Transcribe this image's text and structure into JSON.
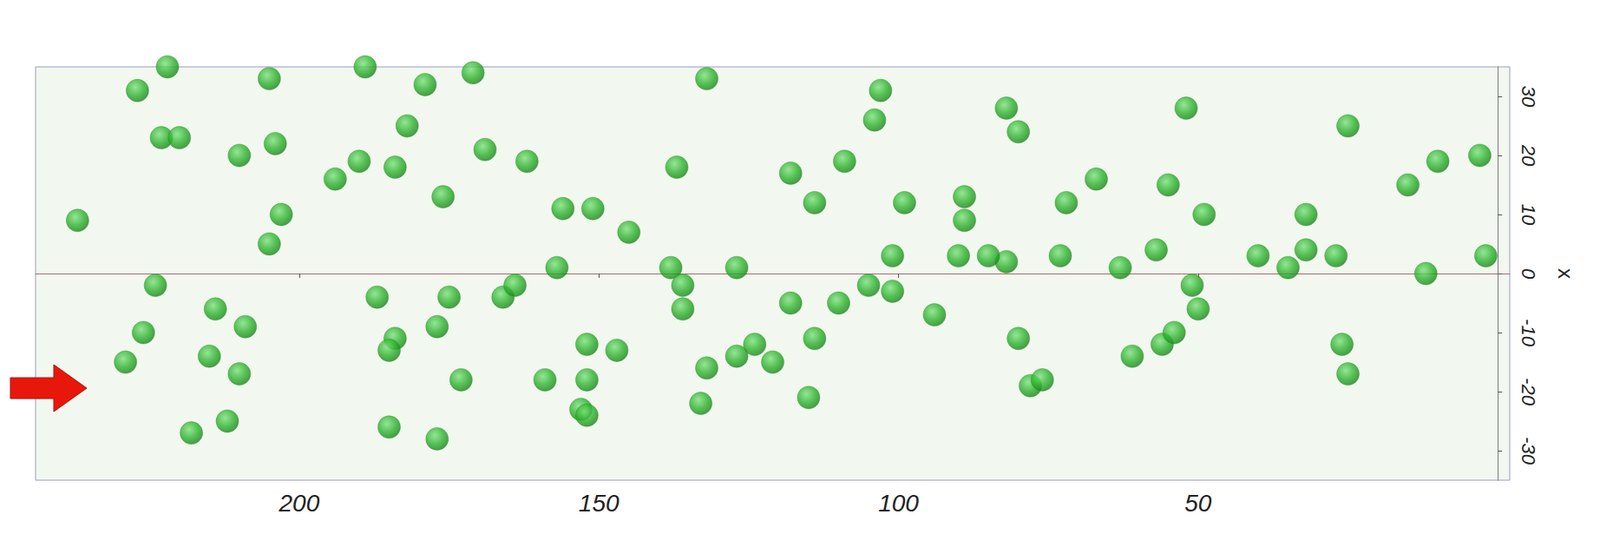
{
  "chart_data": {
    "type": "scatter",
    "ylabel": "x",
    "xlim": [
      244,
      -2
    ],
    "xticks": [
      50,
      100,
      150,
      200
    ],
    "ylim": [
      -35,
      35
    ],
    "yticks": [
      -30,
      -20,
      -10,
      0,
      10,
      20,
      30
    ],
    "grid": false,
    "marker": "circle",
    "color": "#2db32d",
    "x": [
      227,
      222,
      205,
      189,
      179,
      171,
      223,
      220,
      210,
      204,
      194,
      190,
      184,
      182,
      176,
      169,
      162,
      156,
      151,
      145,
      137,
      132,
      138,
      136,
      127,
      118,
      114,
      109,
      103,
      104,
      99,
      89,
      82,
      80,
      72,
      67,
      55,
      49,
      52,
      32,
      25,
      15,
      10,
      3,
      2,
      12,
      27,
      32,
      40,
      51,
      57,
      63,
      73,
      82,
      90,
      89,
      101,
      105,
      110,
      118,
      124,
      132,
      127,
      121,
      114,
      94,
      80,
      78,
      61,
      56,
      50,
      54,
      26,
      25,
      152,
      147,
      136,
      159,
      152,
      153,
      152,
      173,
      184,
      185,
      177,
      175,
      166,
      164,
      157,
      187,
      205,
      203,
      209,
      214,
      215,
      224,
      226,
      237,
      229,
      210,
      218,
      212,
      185,
      177,
      133,
      115,
      101,
      85,
      76,
      35
    ],
    "values": [
      31,
      35,
      33,
      35,
      32,
      34,
      23,
      23,
      20,
      22,
      16,
      19,
      18,
      25,
      13,
      21,
      19,
      11,
      11,
      7,
      18,
      33,
      1,
      -2,
      1,
      17,
      12,
      19,
      31,
      26,
      12,
      13,
      28,
      24,
      12,
      16,
      15,
      10,
      28,
      10,
      25,
      15,
      19,
      20,
      3,
      0,
      3,
      4,
      3,
      -2,
      4,
      1,
      3,
      2,
      3,
      9,
      -3,
      -2,
      -5,
      -5,
      -12,
      -16,
      -14,
      -15,
      -11,
      -7,
      -11,
      -19,
      -14,
      -12,
      -6,
      -10,
      -12,
      -17,
      -12,
      -13,
      -6,
      -18,
      -18,
      -23,
      -24,
      -18,
      -11,
      -13,
      -9,
      -4,
      -4,
      -2,
      1,
      -4,
      5,
      10,
      -9,
      -6,
      -14,
      -2,
      -10,
      9,
      -15,
      -17,
      -27,
      -25,
      -26,
      -28,
      -22,
      -21,
      3,
      3,
      -18,
      1
    ]
  }
}
